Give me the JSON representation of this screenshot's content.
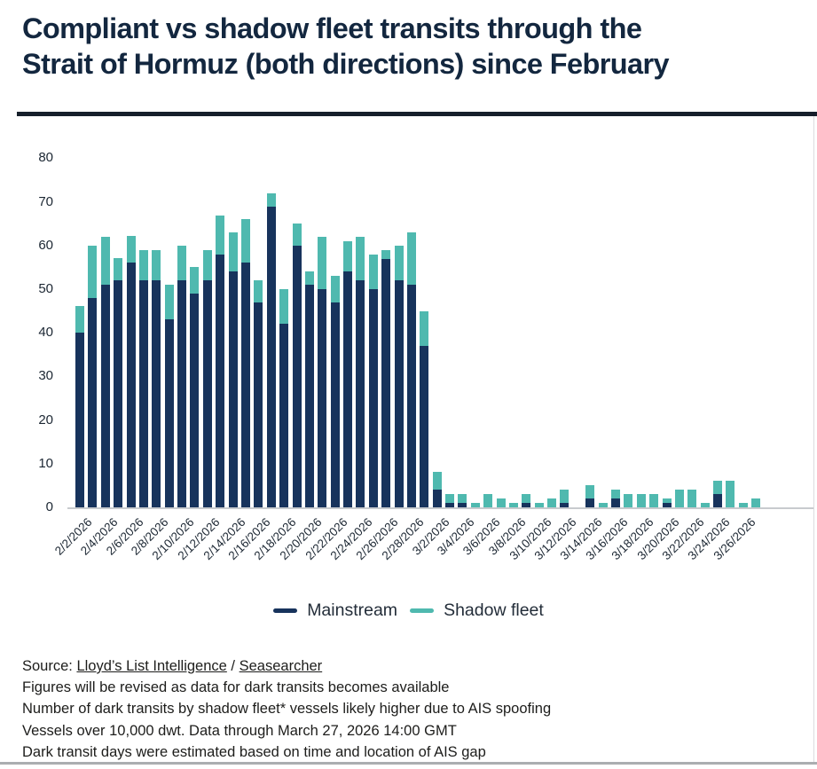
{
  "title": "Compliant vs shadow fleet transits through the Strait of Hormuz (both directions) since February",
  "title_lines": [
    "Compliant vs shadow fleet transits through the",
    "Strait of Hormuz (both directions) since February"
  ],
  "colors": {
    "mainstream": "#17335C",
    "shadow_fleet": "#4FB9AF",
    "title_text": "#13273F",
    "top_rule": "#161F2B",
    "axis_line": "#C8CBCE",
    "tick_text": "#1C2733",
    "footer_text": "#1D1D1B",
    "bottom_rule": "#ABADB0"
  },
  "legend": {
    "items": [
      {
        "label": "Mainstream",
        "color": "#17335C"
      },
      {
        "label": "Shadow fleet",
        "color": "#4FB9AF"
      }
    ]
  },
  "footer": {
    "source_prefix": "Source: ",
    "link1": "Lloyd’s List Intelligence",
    "separator": " / ",
    "link2": "Seasearcher",
    "lines": [
      "Figures will be revised as data for dark transits becomes available",
      "Number of dark transits by shadow fleet* vessels likely higher due to AIS spoofing",
      "Vessels over 10,000 dwt. Data through March 27, 2026 14:00 GMT",
      "Dark transit days were estimated based on time and location of AIS gap"
    ]
  },
  "chart_data": {
    "type": "bar",
    "stacked": true,
    "title": "Compliant vs shadow fleet transits through the Strait of Hormuz (both directions) since February",
    "xlabel": "",
    "ylabel": "",
    "ylim": [
      0,
      80
    ],
    "yticks": [
      0,
      10,
      20,
      30,
      40,
      50,
      60,
      70,
      80
    ],
    "grid": false,
    "legend_position": "bottom",
    "x_tick_every": 2,
    "categories": [
      "2/2/2026",
      "2/3/2026",
      "2/4/2026",
      "2/5/2026",
      "2/6/2026",
      "2/7/2026",
      "2/8/2026",
      "2/9/2026",
      "2/10/2026",
      "2/11/2026",
      "2/12/2026",
      "2/13/2026",
      "2/14/2026",
      "2/15/2026",
      "2/16/2026",
      "2/17/2026",
      "2/18/2026",
      "2/19/2026",
      "2/20/2026",
      "2/21/2026",
      "2/22/2026",
      "2/23/2026",
      "2/24/2026",
      "2/25/2026",
      "2/26/2026",
      "2/27/2026",
      "2/28/2026",
      "3/1/2026",
      "3/2/2026",
      "3/3/2026",
      "3/4/2026",
      "3/5/2026",
      "3/6/2026",
      "3/7/2026",
      "3/8/2026",
      "3/9/2026",
      "3/10/2026",
      "3/11/2026",
      "3/12/2026",
      "3/13/2026",
      "3/14/2026",
      "3/15/2026",
      "3/16/2026",
      "3/17/2026",
      "3/18/2026",
      "3/19/2026",
      "3/20/2026",
      "3/21/2026",
      "3/22/2026",
      "3/23/2026",
      "3/24/2026",
      "3/25/2026",
      "3/26/2026",
      "3/27/2026"
    ],
    "x_tick_labels": [
      "2/2/2026",
      "2/4/2026",
      "2/6/2026",
      "2/8/2026",
      "2/10/2026",
      "2/12/2026",
      "2/14/2026",
      "2/16/2026",
      "2/18/2026",
      "2/20/2026",
      "2/22/2026",
      "2/24/2026",
      "2/26/2026",
      "2/28/2026",
      "3/2/2026",
      "3/4/2026",
      "3/6/2026",
      "3/8/2026",
      "3/10/2026",
      "3/12/2026",
      "3/14/2026",
      "3/16/2026",
      "3/18/2026",
      "3/20/2026",
      "3/22/2026",
      "3/24/2026",
      "3/26/2026"
    ],
    "series": [
      {
        "name": "Mainstream",
        "color": "#17335C",
        "values": [
          40,
          48,
          51,
          52,
          56,
          52,
          52,
          43,
          52,
          49,
          52,
          58,
          54,
          56,
          47,
          69,
          42,
          60,
          51,
          50,
          47,
          54,
          52,
          50,
          57,
          52,
          51,
          37,
          4,
          1,
          1,
          0,
          0,
          0,
          0,
          1,
          0,
          0,
          1,
          0,
          2,
          0,
          2,
          0,
          0,
          0,
          1,
          0,
          0,
          0,
          3,
          0,
          0,
          0
        ]
      },
      {
        "name": "Shadow fleet",
        "color": "#4FB9AF",
        "values": [
          6,
          12,
          11,
          5,
          6,
          7,
          7,
          8,
          8,
          6,
          7,
          9,
          9,
          10,
          5,
          3,
          8,
          5,
          3,
          12,
          6,
          7,
          10,
          8,
          2,
          8,
          12,
          8,
          4,
          2,
          2,
          1,
          3,
          2,
          1,
          2,
          1,
          2,
          3,
          0,
          3,
          1,
          2,
          3,
          3,
          3,
          1,
          4,
          4,
          1,
          3,
          6,
          1,
          2
        ]
      }
    ]
  }
}
